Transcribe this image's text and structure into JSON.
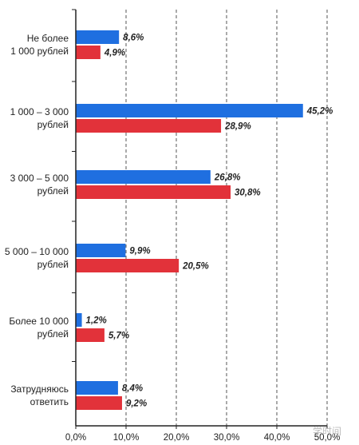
{
  "chart_data": {
    "type": "bar",
    "orientation": "horizontal",
    "categories": [
      [
        "Не более",
        "1 000 рублей"
      ],
      [
        "1 000 – 3 000",
        "рублей"
      ],
      [
        "3 000 – 5 000",
        "рублей"
      ],
      [
        "5 000 – 10 000",
        "рублей"
      ],
      [
        "Более 10 000",
        "рублей"
      ],
      [
        "Затрудняюсь",
        "ответить"
      ]
    ],
    "series": [
      {
        "color": "#1f6fe0",
        "values": [
          8.6,
          45.2,
          26.8,
          9.9,
          1.2,
          8.4
        ],
        "labels": [
          "8,6%",
          "45,2%",
          "26,8%",
          "9,9%",
          "1,2%",
          "8,4%"
        ]
      },
      {
        "color": "#e2323a",
        "values": [
          4.9,
          28.9,
          30.8,
          20.5,
          5.7,
          9.2
        ],
        "labels": [
          "4,9%",
          "28,9%",
          "30,8%",
          "20,5%",
          "5,7%",
          "9,2%"
        ]
      }
    ],
    "xlim": [
      0,
      50
    ],
    "xticks": [
      "0,0%",
      "10,0%",
      "20,0%",
      "30,0%",
      "40,0%",
      "50,0%"
    ],
    "grid": "vertical-dashed",
    "legend": "none"
  },
  "watermark": "学时间"
}
